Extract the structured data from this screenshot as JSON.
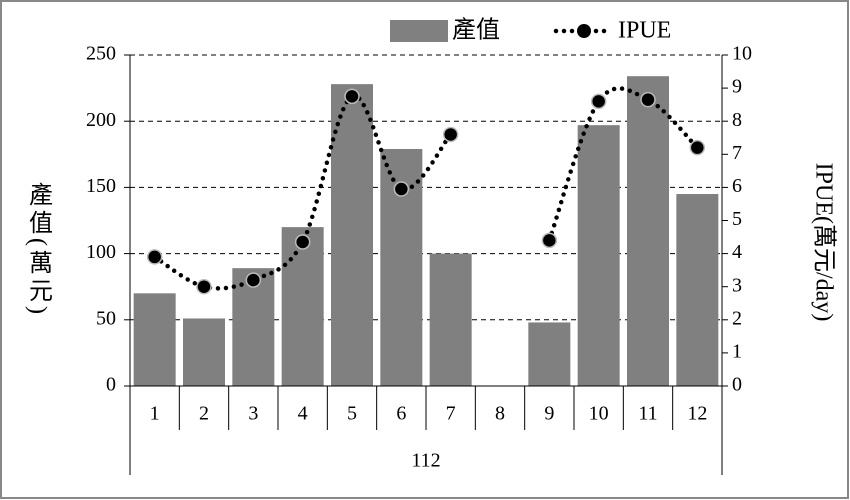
{
  "chart_data": {
    "type": "bar_line",
    "categories": [
      "1",
      "2",
      "3",
      "4",
      "5",
      "6",
      "7",
      "8",
      "9",
      "10",
      "11",
      "12"
    ],
    "x_group_label": "112",
    "series": [
      {
        "name": "產值",
        "color": "#808080",
        "type": "bar",
        "axis": "y",
        "values": [
          70,
          51,
          89,
          120,
          228,
          179,
          100,
          null,
          48,
          197,
          234,
          145
        ]
      },
      {
        "name": "IPUE",
        "color": "#000000",
        "type": "line",
        "axis": "y2",
        "values": [
          3.9,
          3.0,
          3.2,
          4.35,
          8.75,
          5.95,
          7.6,
          null,
          4.4,
          8.6,
          8.65,
          7.2
        ]
      }
    ],
    "ylabel": "產值(萬元)",
    "y2label": "IPUE(萬元/day)",
    "ylim": [
      0,
      250
    ],
    "yticks": [
      0,
      50,
      100,
      150,
      200,
      250
    ],
    "y2lim": [
      0,
      10
    ],
    "y2ticks": [
      0,
      1,
      2,
      3,
      4,
      5,
      6,
      7,
      8,
      9,
      10
    ],
    "grid": true,
    "legend": "top"
  }
}
